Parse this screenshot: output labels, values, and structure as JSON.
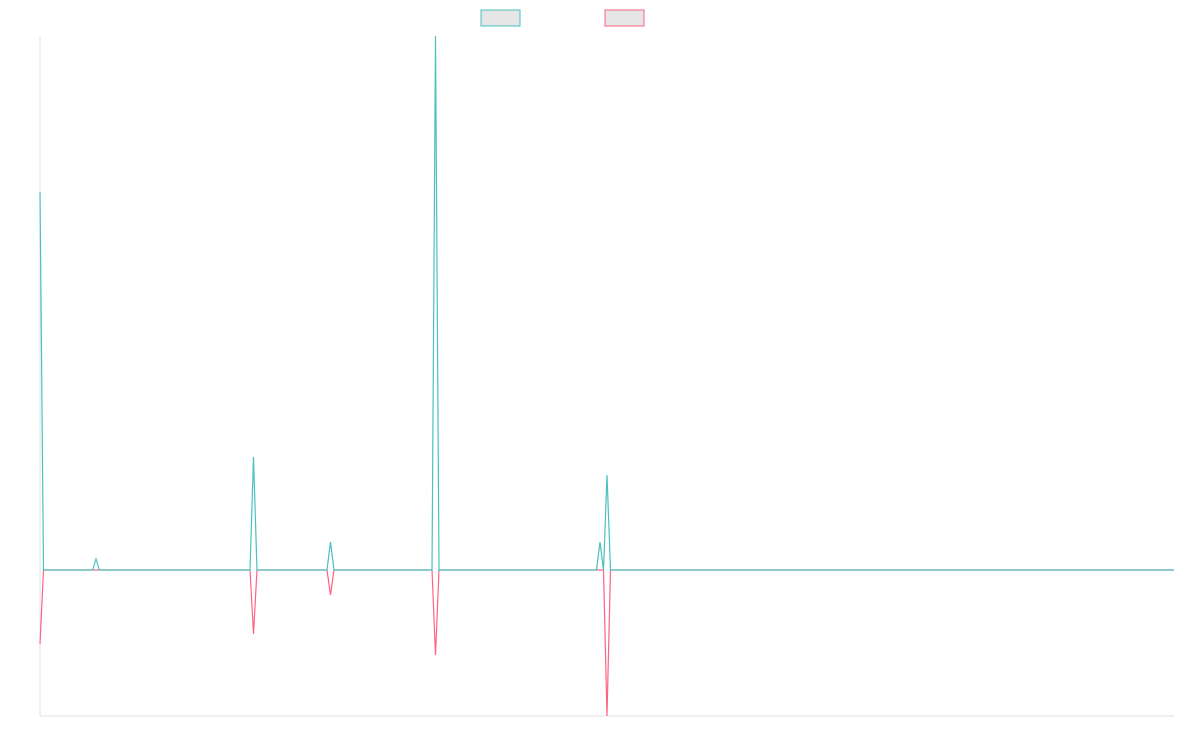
{
  "chart_data": {
    "type": "line",
    "x": [
      0,
      1,
      15,
      16,
      17,
      60,
      61,
      62,
      82,
      83,
      84,
      112,
      113,
      114,
      159,
      160,
      161,
      162,
      163,
      324
    ],
    "series": [
      {
        "color": "#4bc0c0",
        "values": [
          37.8,
          0,
          0,
          1.1,
          0,
          0,
          11.3,
          0,
          0,
          2.8,
          0,
          0,
          53.4,
          0,
          0,
          2.8,
          0,
          9.5,
          0,
          0
        ]
      },
      {
        "color": "#ff6384",
        "values": [
          -7.4,
          0,
          0,
          0,
          0,
          0,
          -6.4,
          0,
          0,
          -2.5,
          0,
          0,
          -8.5,
          0,
          0,
          0,
          0,
          -14.6,
          0,
          0
        ]
      }
    ],
    "xlim": [
      0,
      324
    ],
    "ylim": [
      -14.6,
      53.4
    ]
  }
}
